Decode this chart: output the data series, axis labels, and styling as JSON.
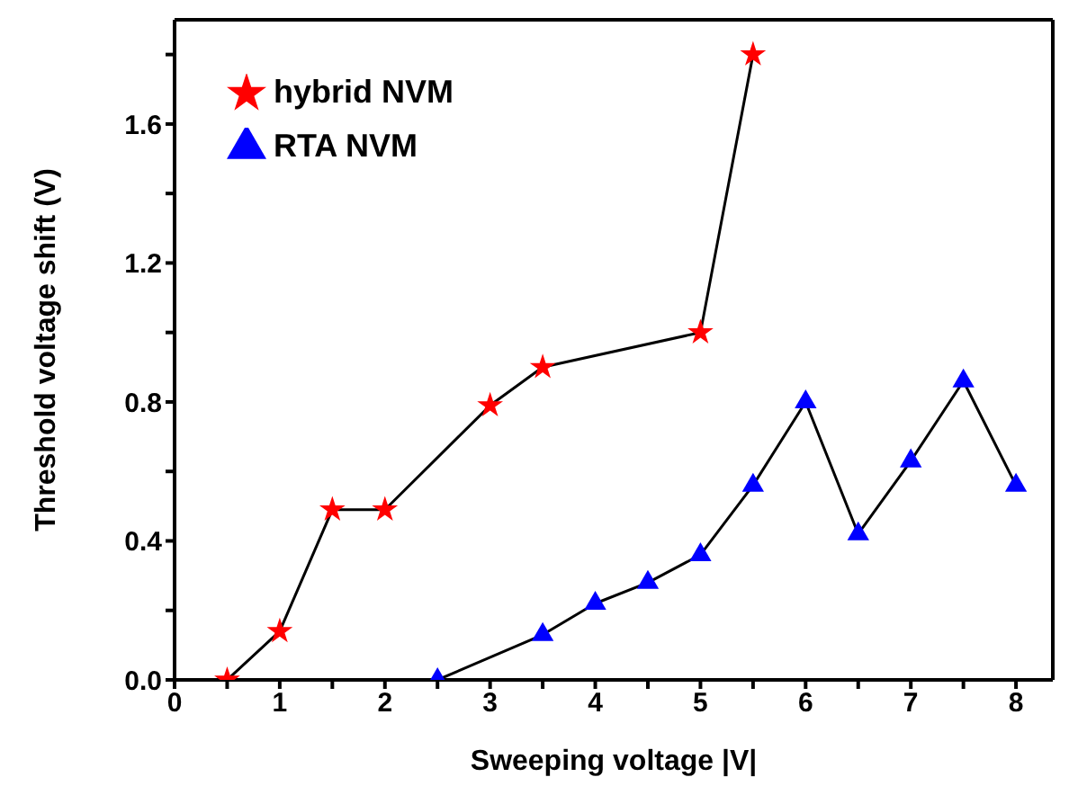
{
  "chart_data": {
    "type": "line",
    "xlabel": "Sweeping  voltage |V|",
    "ylabel": "Threshold voltage shift (V)",
    "xlim": [
      0,
      8.35
    ],
    "ylim": [
      0,
      1.9
    ],
    "xticks": [
      0,
      {
        "value": 0.5,
        "label": null
      },
      1,
      {
        "value": 1.5,
        "label": null
      },
      2,
      {
        "value": 2.5,
        "label": null
      },
      3,
      {
        "value": 3.5,
        "label": null
      },
      4,
      {
        "value": 4.5,
        "label": null
      },
      5,
      {
        "value": 5.5,
        "label": null
      },
      6,
      {
        "value": 6.5,
        "label": null
      },
      7,
      {
        "value": 7.5,
        "label": null
      },
      8
    ],
    "yticks": [
      {
        "value": 0,
        "label": "0.0"
      },
      {
        "value": 0.2,
        "label": null
      },
      0.4,
      {
        "value": 0.6,
        "label": null
      },
      0.8,
      {
        "value": 1.0,
        "label": null
      },
      1.2,
      {
        "value": 1.4,
        "label": null
      },
      1.6,
      {
        "value": 1.8,
        "label": null
      }
    ],
    "legend": "top left",
    "grid": false,
    "line_style": "solid",
    "series": [
      {
        "name": "hybrid NVM",
        "color": "#ff0000",
        "marker": "star",
        "x": [
          0.5,
          1,
          1.5,
          2,
          3,
          3.5,
          5,
          5.5
        ],
        "values": [
          0,
          0.14,
          0.49,
          0.49,
          0.79,
          0.9,
          1.0,
          1.8
        ]
      },
      {
        "name": "RTA NVM",
        "color": "#0000ff",
        "marker": "triangle",
        "x": [
          2.5,
          3.5,
          4,
          4.5,
          5,
          5.5,
          6,
          6.5,
          7,
          7.5,
          8
        ],
        "values": [
          0,
          0.13,
          0.22,
          0.28,
          0.36,
          0.56,
          0.8,
          0.42,
          0.63,
          0.86,
          0.56
        ]
      }
    ]
  }
}
